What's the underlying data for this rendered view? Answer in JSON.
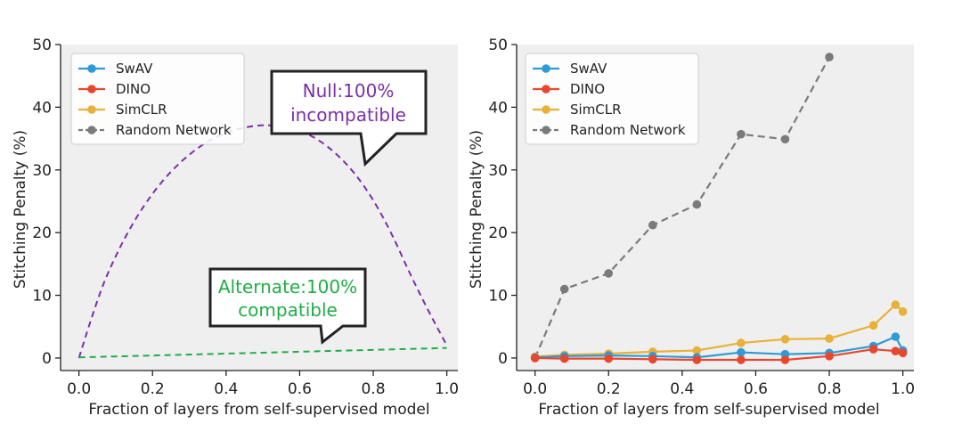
{
  "colors": {
    "SwAV": "#2e9bd6",
    "DINO": "#e8472e",
    "SimCLR": "#e8b13a",
    "Random Network": "#7a7a7a",
    "null_curve": "#7b2fa8",
    "alternate_curve": "#1fae45",
    "plot_background": "#efefef"
  },
  "chart_data": [
    {
      "type": "line",
      "xlabel": "Fraction of layers from self-supervised model",
      "ylabel": "Stitching Penalty (%)",
      "xlim": [
        -0.05,
        1.03
      ],
      "ylim": [
        -2,
        50
      ],
      "xticks": [
        "0.0",
        "0.2",
        "0.4",
        "0.6",
        "0.8",
        "1.0"
      ],
      "yticks": [
        "0",
        "10",
        "20",
        "30",
        "40",
        "50"
      ],
      "grid": false,
      "legend": {
        "placement": "top-left",
        "entries": [
          {
            "label": "SwAV",
            "style": "solid-marker"
          },
          {
            "label": "DINO",
            "style": "solid-marker"
          },
          {
            "label": "SimCLR",
            "style": "solid-marker"
          },
          {
            "label": "Random Network",
            "style": "dashed-marker"
          }
        ]
      },
      "curves": [
        {
          "name": "null",
          "style": "dashed",
          "x": [
            0.0,
            0.05,
            0.1,
            0.15,
            0.2,
            0.25,
            0.3,
            0.35,
            0.4,
            0.45,
            0.5,
            0.55,
            0.6,
            0.65,
            0.7,
            0.75,
            0.8,
            0.85,
            0.9,
            0.95,
            1.0
          ],
          "y": [
            0.0,
            9.6,
            16.4,
            21.9,
            26.3,
            29.8,
            32.5,
            34.6,
            36.0,
            36.8,
            37.2,
            37.0,
            36.3,
            34.9,
            32.6,
            29.5,
            25.3,
            19.9,
            13.4,
            7.5,
            2.0
          ]
        },
        {
          "name": "alternate",
          "style": "dashed",
          "x": [
            0.0,
            1.0
          ],
          "y": [
            0.1,
            1.6
          ]
        }
      ],
      "annotations": [
        {
          "id": "null",
          "text_lines": [
            "Null:100%",
            "incompatible"
          ],
          "color": "#7b2fa8"
        },
        {
          "id": "alternate",
          "text_lines": [
            "Alternate:100%",
            "compatible"
          ],
          "color": "#1fae45"
        }
      ]
    },
    {
      "type": "line",
      "xlabel": "Fraction of layers from self-supervised model",
      "ylabel": "Stitching Penalty (%)",
      "xlim": [
        -0.05,
        1.03
      ],
      "ylim": [
        -2,
        50
      ],
      "xticks": [
        "0.0",
        "0.2",
        "0.4",
        "0.6",
        "0.8",
        "1.0"
      ],
      "yticks": [
        "0",
        "10",
        "20",
        "30",
        "40",
        "50"
      ],
      "grid": false,
      "legend": {
        "placement": "top-left",
        "entries": [
          {
            "label": "SwAV",
            "style": "solid-marker"
          },
          {
            "label": "DINO",
            "style": "solid-marker"
          },
          {
            "label": "SimCLR",
            "style": "solid-marker"
          },
          {
            "label": "Random Network",
            "style": "dashed-marker"
          }
        ]
      },
      "series": [
        {
          "name": "SwAV",
          "style": "solid",
          "x": [
            0.0,
            0.08,
            0.2,
            0.32,
            0.44,
            0.56,
            0.68,
            0.8,
            0.92,
            0.98,
            1.0
          ],
          "y": [
            0.1,
            0.3,
            0.4,
            0.3,
            0.1,
            0.9,
            0.6,
            0.8,
            1.9,
            3.4,
            1.2
          ]
        },
        {
          "name": "DINO",
          "style": "solid",
          "x": [
            0.0,
            0.08,
            0.2,
            0.32,
            0.44,
            0.56,
            0.68,
            0.8,
            0.92,
            0.98,
            1.0
          ],
          "y": [
            0.0,
            -0.1,
            -0.1,
            -0.2,
            -0.3,
            -0.3,
            -0.3,
            0.3,
            1.4,
            1.1,
            0.8
          ]
        },
        {
          "name": "SimCLR",
          "style": "solid",
          "x": [
            0.0,
            0.08,
            0.2,
            0.32,
            0.44,
            0.56,
            0.68,
            0.8,
            0.92,
            0.98,
            1.0
          ],
          "y": [
            0.2,
            0.5,
            0.7,
            1.0,
            1.2,
            2.4,
            3.0,
            3.1,
            5.2,
            8.5,
            7.4
          ]
        },
        {
          "name": "Random Network",
          "style": "dashed",
          "x": [
            0.0,
            0.08,
            0.2,
            0.32,
            0.44,
            0.56,
            0.68,
            0.8
          ],
          "y": [
            0.0,
            11.0,
            13.5,
            21.2,
            24.5,
            35.7,
            34.9,
            48.0
          ]
        }
      ]
    }
  ]
}
